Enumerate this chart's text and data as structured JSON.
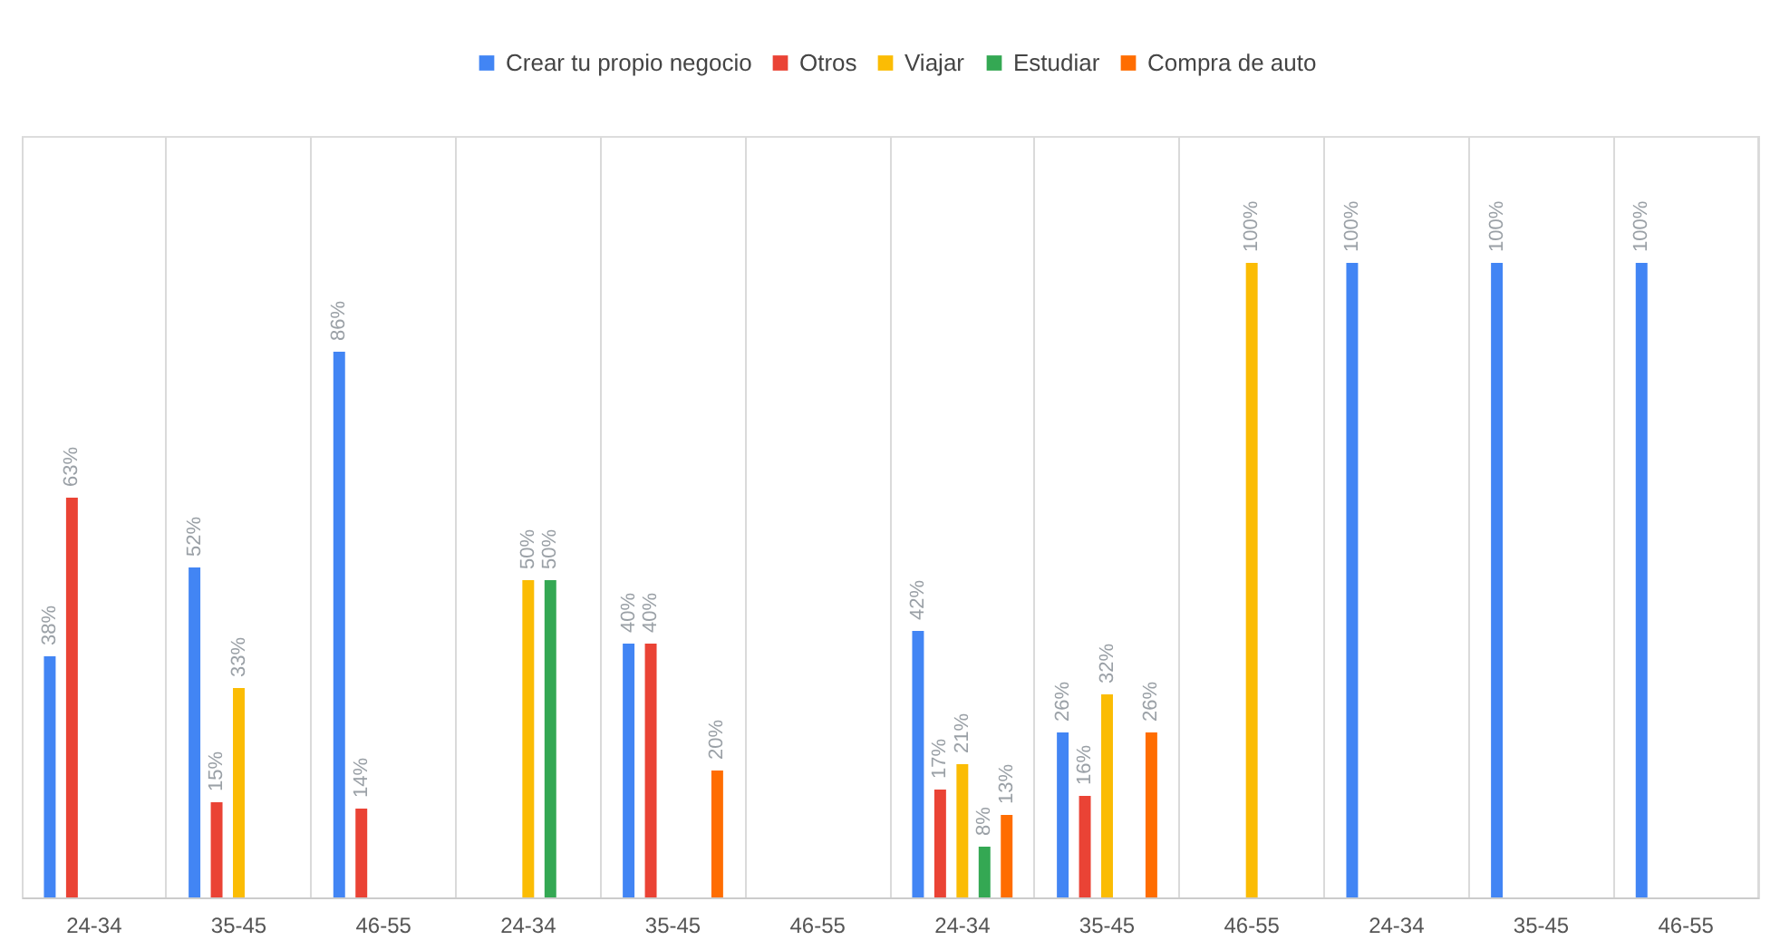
{
  "chart_data": {
    "type": "bar",
    "categories": [
      "24-34",
      "35-45",
      "46-55",
      "24-34",
      "35-45",
      "46-55",
      "24-34",
      "35-45",
      "46-55",
      "24-34",
      "35-45",
      "46-55"
    ],
    "series": [
      {
        "name": "Crear tu propio negocio",
        "color": "#4285f4",
        "values": [
          38,
          52,
          86,
          null,
          40,
          null,
          42,
          26,
          null,
          100,
          100,
          100
        ],
        "value_labels": [
          "38%",
          "52%",
          "86%",
          null,
          "40%",
          null,
          "42%",
          "26%",
          null,
          "100%",
          "100%",
          "100%"
        ]
      },
      {
        "name": "Otros",
        "color": "#ea4335",
        "values": [
          63,
          15,
          14,
          null,
          40,
          null,
          17,
          16,
          null,
          null,
          null,
          null
        ],
        "value_labels": [
          "63%",
          "15%",
          "14%",
          null,
          "40%",
          null,
          "17%",
          "16%",
          null,
          null,
          null,
          null
        ]
      },
      {
        "name": "Viajar",
        "color": "#fbbc04",
        "values": [
          null,
          33,
          null,
          50,
          null,
          null,
          21,
          32,
          100,
          null,
          null,
          null
        ],
        "value_labels": [
          null,
          "33%",
          null,
          "50%",
          null,
          null,
          "21%",
          "32%",
          "100%",
          null,
          null,
          null
        ]
      },
      {
        "name": "Estudiar",
        "color": "#34a853",
        "values": [
          null,
          null,
          null,
          50,
          null,
          null,
          8,
          null,
          null,
          null,
          null,
          null
        ],
        "value_labels": [
          null,
          null,
          null,
          "50%",
          null,
          null,
          "8%",
          null,
          null,
          null,
          null,
          null
        ]
      },
      {
        "name": "Compra de auto",
        "color": "#ff6d01",
        "values": [
          null,
          null,
          null,
          null,
          20,
          null,
          13,
          26,
          null,
          null,
          null,
          null
        ],
        "value_labels": [
          null,
          null,
          null,
          null,
          "20%",
          null,
          "13%",
          "26%",
          null,
          null,
          null,
          null
        ]
      }
    ],
    "ylim": [
      0,
      120
    ],
    "tick_labels": "x",
    "grid": "x",
    "legend": "top"
  }
}
